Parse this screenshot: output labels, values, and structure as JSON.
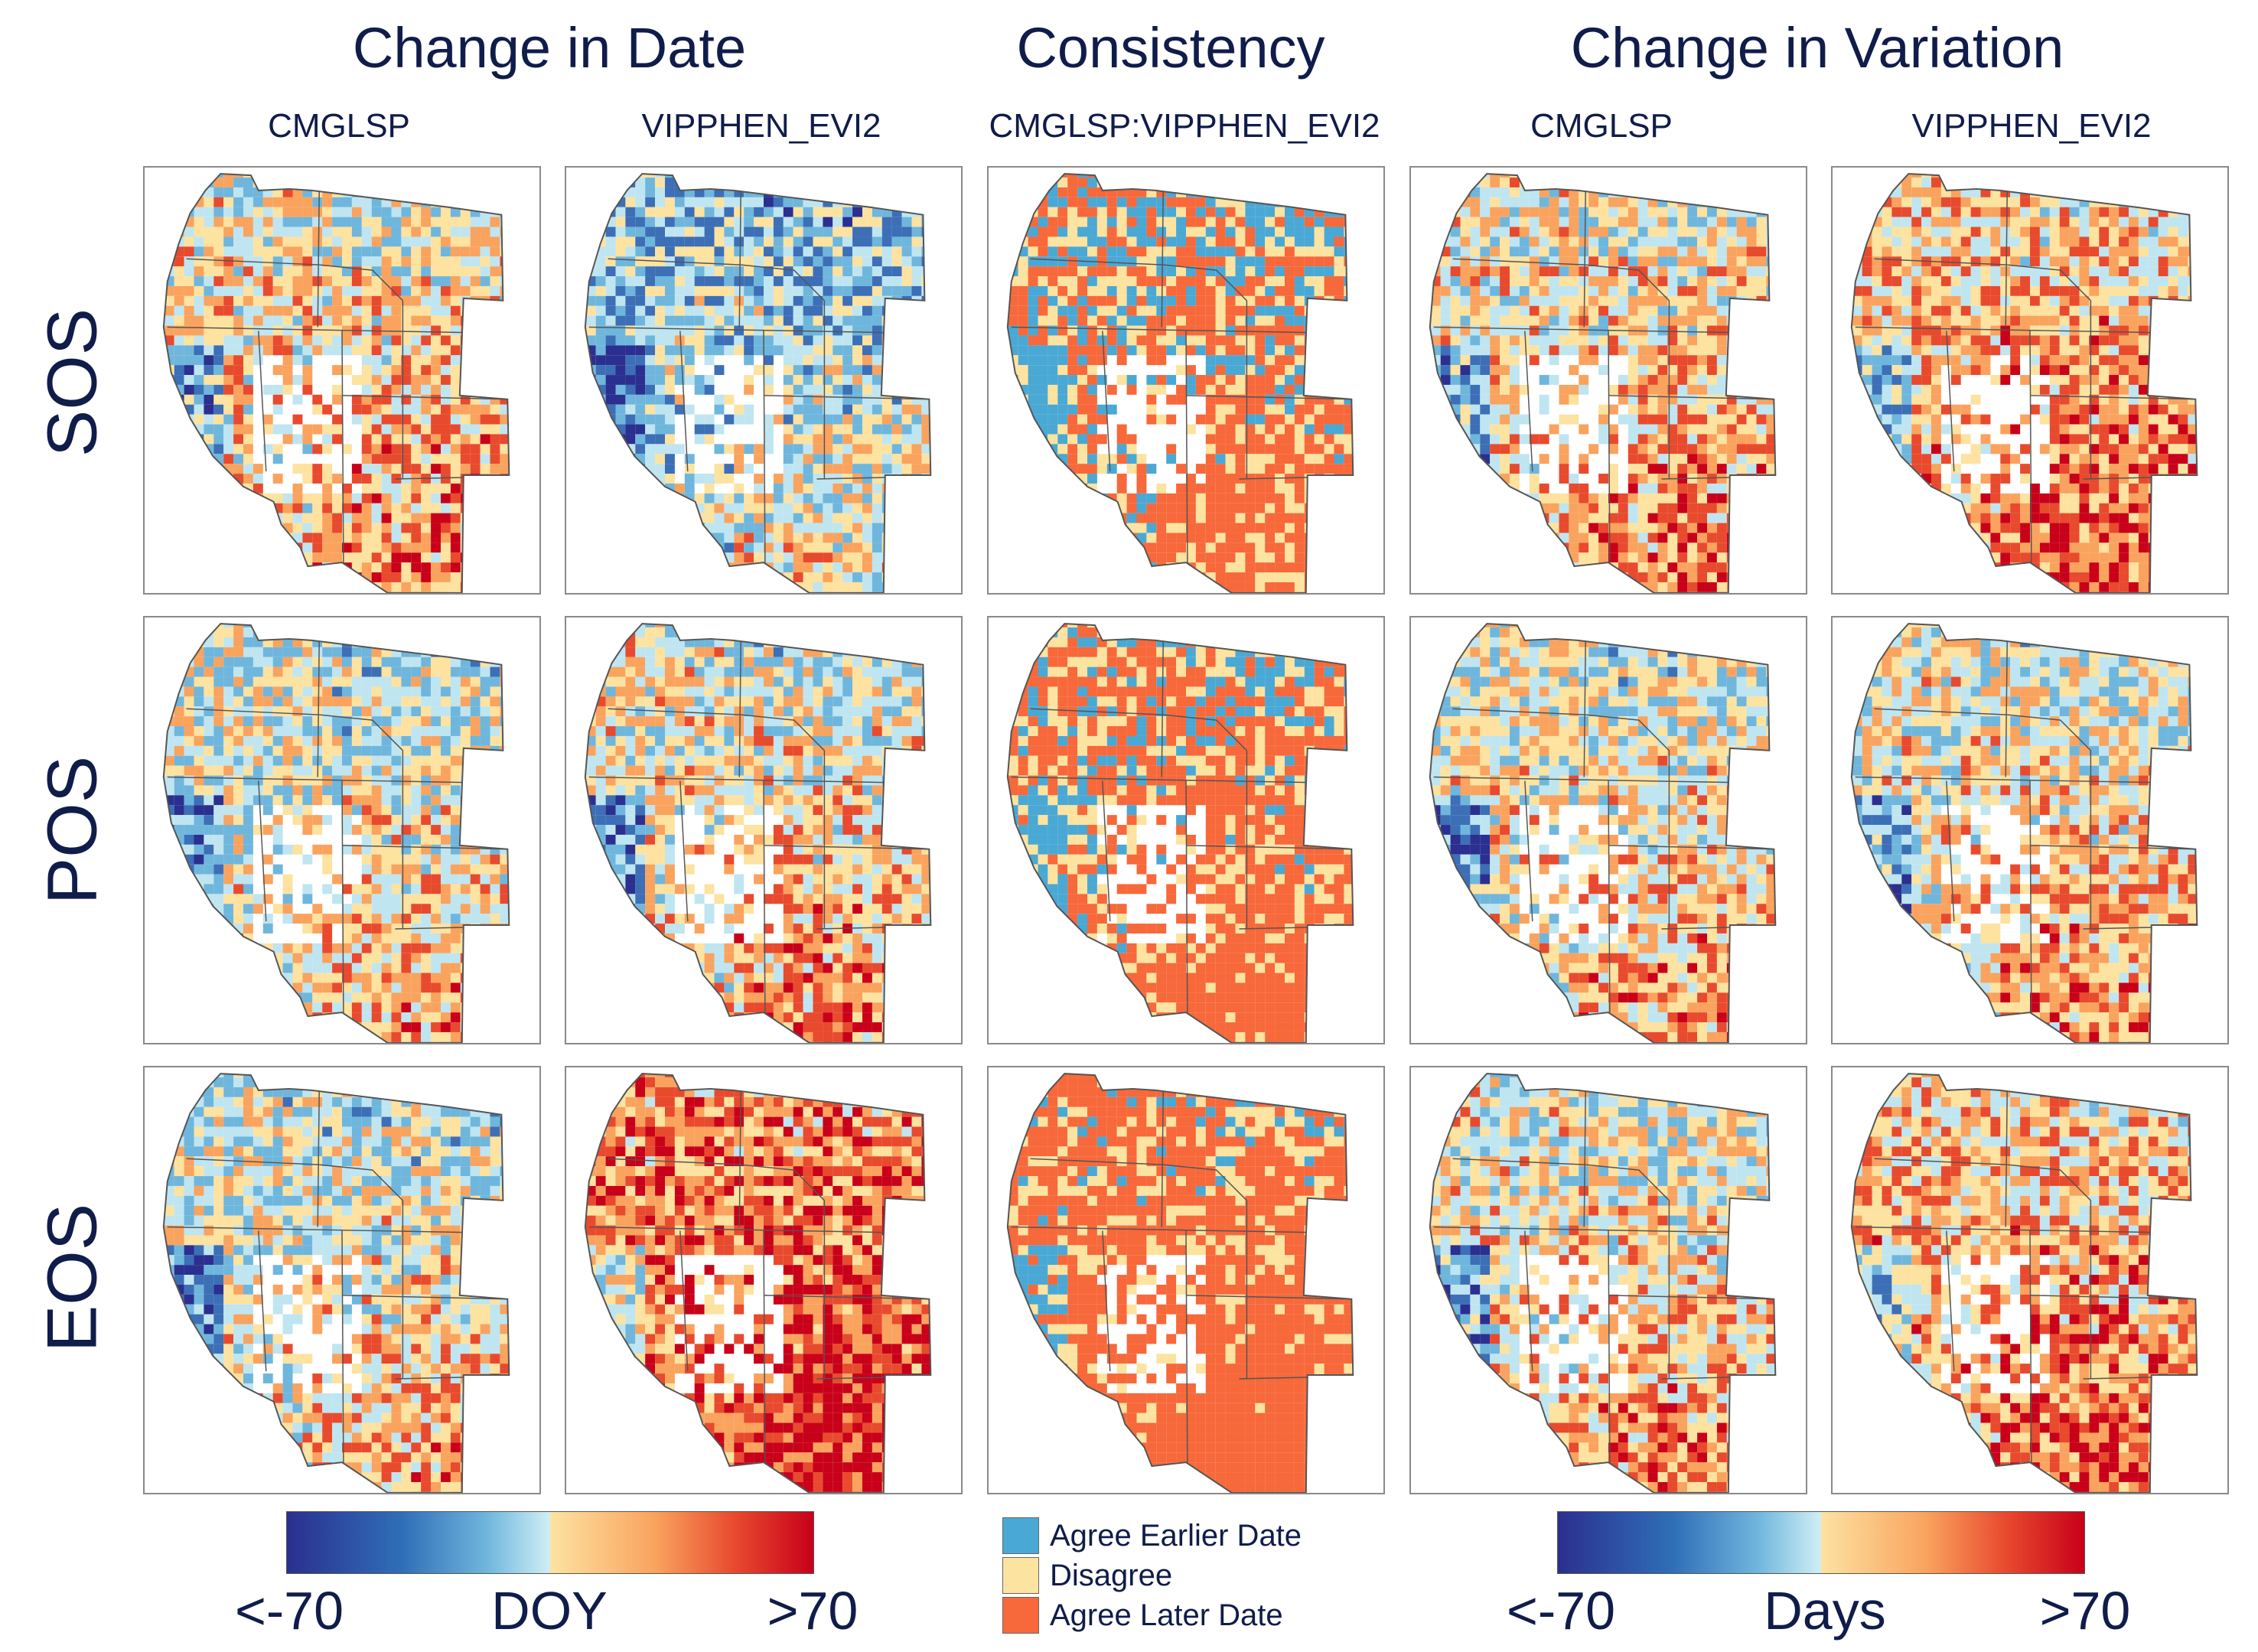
{
  "figure": {
    "section_titles": {
      "change_in_date": "Change in Date",
      "consistency": "Consistency",
      "change_in_variation": "Change in Variation"
    },
    "columns": {
      "c1": "CMGLSP",
      "c2": "VIPPHEN_EVI2",
      "c3": "CMGLSP:VIPPHEN_EVI2",
      "c4": "CMGLSP",
      "c5": "VIPPHEN_EVI2"
    },
    "rows": {
      "r1": "SOS",
      "r2": "POS",
      "r3": "EOS"
    },
    "colorbar_date": {
      "min_label": "<-70",
      "unit_label": "DOY",
      "max_label": ">70"
    },
    "colorbar_variation": {
      "min_label": "<-70",
      "unit_label": "Days",
      "max_label": ">70"
    },
    "consistency_legend": {
      "earlier": "Agree Earlier Date",
      "disagree": "Disagree",
      "later": "Agree Later Date"
    }
  },
  "colors": {
    "diverging_low": "#2b2f8f",
    "diverging_mid_low": "#a9dbea",
    "diverging_mid_high": "#fde2a0",
    "diverging_high": "#c8001a",
    "agree_earlier": "#4aa8d4",
    "disagree": "#fde3a0",
    "agree_later": "#f7683a"
  },
  "panels": [
    {
      "row": "SOS",
      "col": 1,
      "tone": 0.15
    },
    {
      "row": "SOS",
      "col": 2,
      "tone": -0.25
    },
    {
      "row": "SOS",
      "col": 3,
      "tone": 0.1
    },
    {
      "row": "SOS",
      "col": 4,
      "tone": 0.15
    },
    {
      "row": "SOS",
      "col": 5,
      "tone": 0.3
    },
    {
      "row": "POS",
      "col": 1,
      "tone": 0.0
    },
    {
      "row": "POS",
      "col": 2,
      "tone": 0.1
    },
    {
      "row": "POS",
      "col": 3,
      "tone": 0.2
    },
    {
      "row": "POS",
      "col": 4,
      "tone": 0.05
    },
    {
      "row": "POS",
      "col": 5,
      "tone": 0.1
    },
    {
      "row": "EOS",
      "col": 1,
      "tone": 0.0
    },
    {
      "row": "EOS",
      "col": 2,
      "tone": 0.55
    },
    {
      "row": "EOS",
      "col": 3,
      "tone": 0.35
    },
    {
      "row": "EOS",
      "col": 4,
      "tone": 0.1
    },
    {
      "row": "EOS",
      "col": 5,
      "tone": 0.3
    }
  ]
}
